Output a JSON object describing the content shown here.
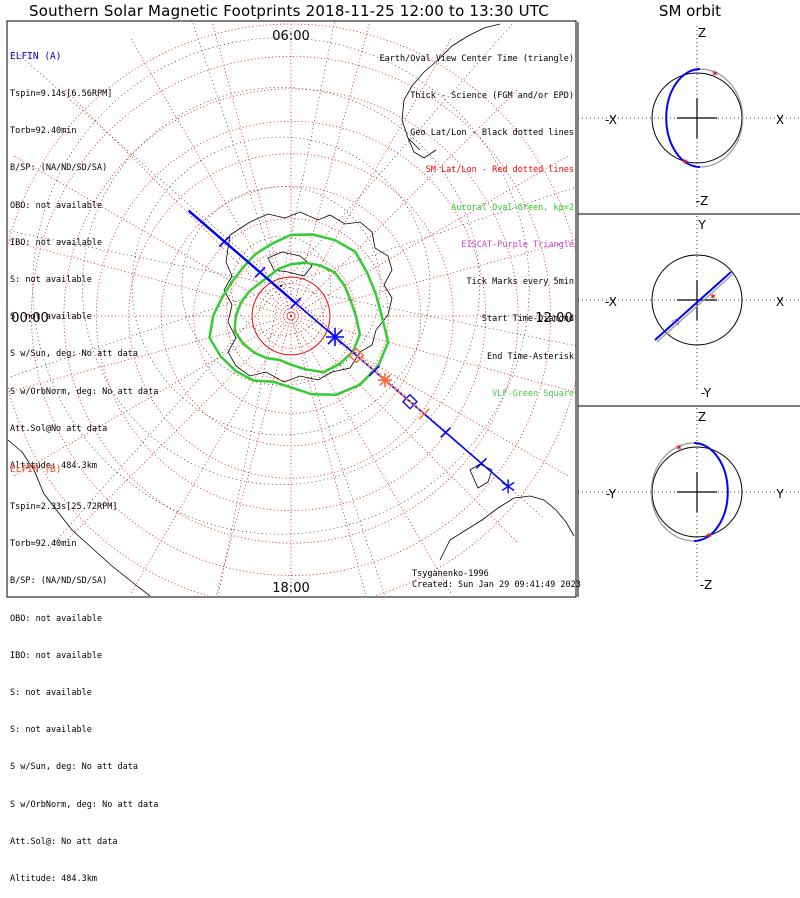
{
  "title": "Southern Solar Magnetic Footprints 2018-11-25 12:00 to 13:30 UTC",
  "side_title": "SM orbit",
  "spacecraft_a": {
    "name": "ELFIN (A)",
    "lines": [
      "Tspin=9.14s[6.56RPM]",
      "Torb=92.40min",
      "B/SP: (NA/ND/SD/SA)",
      "OBO: not available",
      "IBO: not available",
      "S: not available",
      "S: not available",
      "S w/Sun, deg: No att data",
      "S w/OrbNorm, deg: No att data",
      "Att.Sol@No att data",
      "Altitude: 484.3km"
    ]
  },
  "spacecraft_b": {
    "name": "ELFIN (B)",
    "lines": [
      "Tspin=2.33s[25.72RPM]",
      "Torb=92.40min",
      "B/SP: (NA/ND/SD/SA)",
      "OBO: not available",
      "IBO: not available",
      "S: not available",
      "S: not available",
      "S w/Sun, deg: No att data",
      "S w/OrbNorm, deg: No att data",
      "Att.Sol@: No att data",
      "Altitude: 484.3km"
    ]
  },
  "legend": [
    {
      "text": "Earth/Oval View Center Time (triangle)",
      "color": "#000000"
    },
    {
      "text": "Thick - Science (FGM and/or EPD)",
      "color": "#000000"
    },
    {
      "text": "Geo Lat/Lon - Black dotted lines",
      "color": "#000000"
    },
    {
      "text": "SM Lat/Lon - Red dotted lines",
      "color": "#ff0000"
    },
    {
      "text": "Auroral Oval-Green, kp=2",
      "color": "#22cc22"
    },
    {
      "text": "EISCAT-Purple Triangle",
      "color": "#cc44cc"
    },
    {
      "text": "Tick Marks every 5min",
      "color": "#000000"
    },
    {
      "text": "Start Time-Diamond",
      "color": "#000000"
    },
    {
      "text": "End Time-Asterisk",
      "color": "#000000"
    },
    {
      "text": "VLF-Green Square",
      "color": "#44cc44"
    }
  ],
  "footer": {
    "model": "Tsyganenko-1996",
    "created": "Created: Sun Jan 29 09:41:49 2023"
  },
  "chart_data": [
    {
      "type": "polar-map",
      "title": "Southern Solar Magnetic Footprints 2018-11-25 12:00 to 13:30 UTC",
      "mlt_labels": {
        "top": "06:00",
        "left": "00:00",
        "right": "12:00",
        "bottom": "18:00"
      },
      "colatitude_rings_deg": [
        10,
        20,
        30,
        40,
        50,
        60,
        70,
        80,
        90
      ],
      "mlt_spokes": 24,
      "footprint_a": {
        "color": "#0000ff",
        "points": [
          [
            -0.82,
            -0.82
          ],
          [
            -0.62,
            -0.62
          ],
          [
            -0.42,
            -0.42
          ],
          [
            -0.22,
            -0.22
          ],
          [
            0.0,
            0.0
          ],
          [
            0.22,
            0.22
          ],
          [
            0.42,
            0.42
          ],
          [
            0.62,
            0.62
          ],
          [
            0.82,
            0.82
          ],
          [
            0.97,
            0.97
          ]
        ],
        "tick_indices": [
          1,
          2,
          3,
          5,
          7,
          8
        ]
      },
      "footprint_b": {
        "color": "#ff6633",
        "points": [
          [
            0.12,
            0.12
          ],
          [
            0.22,
            0.22
          ],
          [
            0.28,
            0.28
          ],
          [
            0.42,
            0.42
          ],
          [
            0.5,
            0.5
          ]
        ]
      },
      "auroral_oval_kp": 2,
      "auroral_oval": {
        "color": "#33cc33",
        "outer_colat_deg": [
          28,
          31,
          31,
          30,
          28,
          25,
          22,
          21,
          23,
          24,
          25,
          26,
          24,
          22,
          21,
          21,
          22,
          23,
          25,
          26,
          27,
          28,
          27,
          27
        ],
        "inner_colat_deg": [
          20,
          22,
          22,
          21,
          20,
          17,
          15,
          14,
          15,
          16,
          17,
          18,
          17,
          16,
          15,
          14,
          14,
          15,
          16,
          17,
          18,
          19,
          19,
          19
        ]
      },
      "sm_circle_colat_deg": 12
    },
    {
      "type": "orbit",
      "panel": "z-x",
      "axes": {
        "up": "Z",
        "down": "-Z",
        "left": "-X",
        "right": "X"
      }
    },
    {
      "type": "orbit",
      "panel": "y-x",
      "axes": {
        "up": "Y",
        "down": "-Y",
        "left": "-X",
        "right": "X"
      }
    },
    {
      "type": "orbit",
      "panel": "z-y",
      "axes": {
        "up": "Z",
        "down": "-Z",
        "left": "-Y",
        "right": "Y"
      }
    }
  ]
}
